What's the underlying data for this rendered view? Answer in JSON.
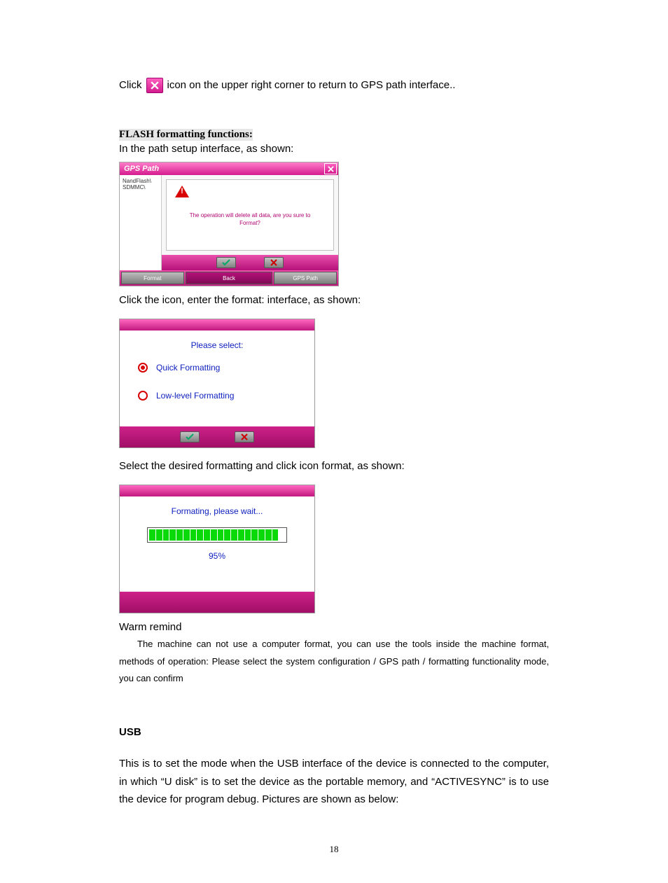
{
  "intro": {
    "click_prefix": "Click",
    "click_suffix": "icon on the upper right corner to return to GPS path interface.."
  },
  "flash": {
    "heading": "FLASH formatting functions:",
    "line1": "In the path setup interface, as shown:",
    "line2": "Click the icon, enter the format: interface, as shown:",
    "line3": "Select the desired formatting and click icon format, as shown:"
  },
  "dlg1": {
    "title": "GPS Path",
    "side": {
      "a": "NandFlash\\",
      "b": "SDMMC\\"
    },
    "msg_l1": "The operation will delete all data, are you sure to",
    "msg_l2": "Format?",
    "bottom": {
      "format": "Format",
      "back": "Back",
      "gpspath": "GPS Path"
    }
  },
  "dlg2": {
    "prompt": "Please select:",
    "opt1": "Quick Formatting",
    "opt2": "Low-level Formatting"
  },
  "dlg3": {
    "msg": "Formating, please wait...",
    "percent_value": 95,
    "percent_label": "95%",
    "segments_total": 20,
    "segments_filled": 19
  },
  "warm": {
    "heading": "Warm remind",
    "body": "The machine can not use a computer format, you can use the tools inside the machine format, methods of operation: Please select the system configuration / GPS path / formatting functionality mode, you can confirm"
  },
  "usb": {
    "heading": "USB",
    "body": "This is to set the mode when the USB interface of the device is connected to the computer, in which “U disk” is to set the device as the portable memory, and “ACTIVESYNC” is to use the device for program debug. Pictures are shown as below:"
  },
  "page_number": "18",
  "colors": {
    "magenta_dark": "#b51179",
    "magenta_light": "#ff69c1",
    "link_blue": "#1020c0",
    "red": "#d80000",
    "green": "#09d809"
  }
}
